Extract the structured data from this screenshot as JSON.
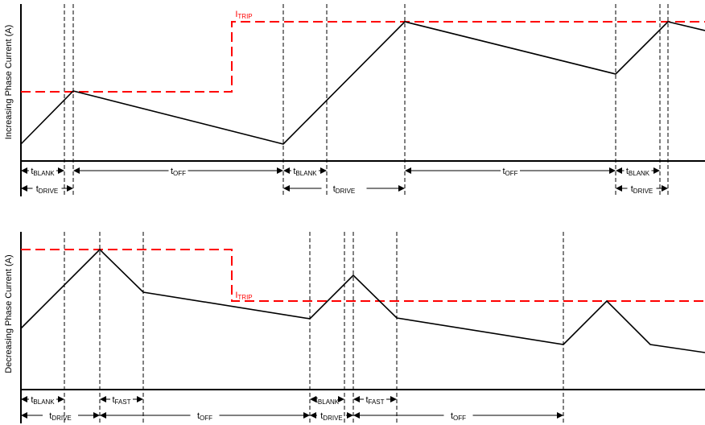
{
  "colors": {
    "trip_line": "#ff0000",
    "current_line": "#000000",
    "axis": "#000000"
  },
  "top_panel": {
    "ylabel": "Increasing Phase Current (A)",
    "trip_label": {
      "main": "I",
      "sub": "TRIP"
    },
    "intervals": [
      {
        "main": "t",
        "sub": "BLANK"
      },
      {
        "main": "t",
        "sub": "OFF"
      },
      {
        "main": "t",
        "sub": "BLANK"
      },
      {
        "main": "t",
        "sub": "OFF"
      },
      {
        "main": "t",
        "sub": "BLANK"
      },
      {
        "main": "t",
        "sub": "DRIVE"
      },
      {
        "main": "t",
        "sub": "DRIVE"
      },
      {
        "main": "t",
        "sub": "DRIVE"
      }
    ]
  },
  "bottom_panel": {
    "ylabel": "Decreasing Phase Current (A)",
    "trip_label": {
      "main": "I",
      "sub": "TRIP"
    },
    "intervals": [
      {
        "main": "t",
        "sub": "BLANK"
      },
      {
        "main": "t",
        "sub": "FAST"
      },
      {
        "main": "t",
        "sub": "BLANK"
      },
      {
        "main": "t",
        "sub": "FAST"
      },
      {
        "main": "t",
        "sub": "DRIVE"
      },
      {
        "main": "t",
        "sub": "OFF"
      },
      {
        "main": "t",
        "sub": "DRIVE"
      },
      {
        "main": "t",
        "sub": "OFF"
      }
    ]
  }
}
